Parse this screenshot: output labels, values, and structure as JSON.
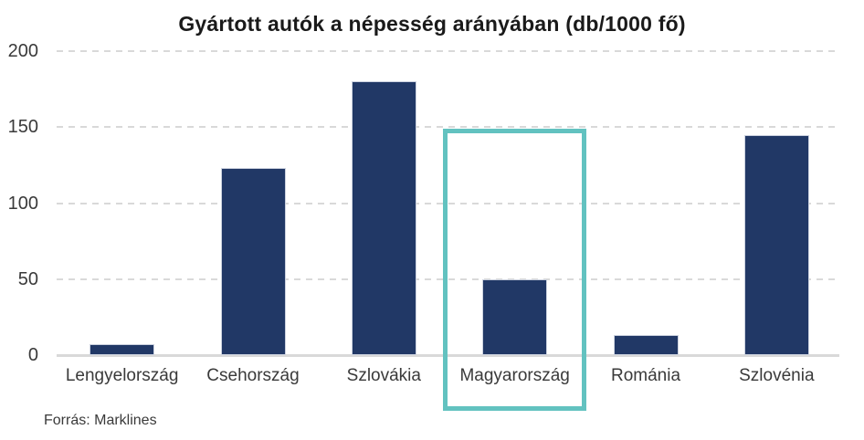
{
  "chart_data": {
    "type": "bar",
    "title": "Gyártott autók a népesség arányában (db/1000 fő)",
    "categories": [
      "Lengyelország",
      "Csehország",
      "Szlovákia",
      "Magyarország",
      "Románia",
      "Szlovénia"
    ],
    "values": [
      7,
      123,
      180,
      50,
      13,
      145
    ],
    "xlabel": "",
    "ylabel": "",
    "ylim": [
      0,
      200
    ],
    "yticks": [
      0,
      50,
      100,
      150,
      200
    ],
    "grid": "dashed-horizontal",
    "legend": "none",
    "bar_color": "#213866",
    "axis_line_color": "#d9d9d9",
    "highlight": {
      "category": "Magyarország",
      "box_color": "#62c2c0"
    }
  },
  "footer": {
    "source": "Forrás: Marklines"
  }
}
